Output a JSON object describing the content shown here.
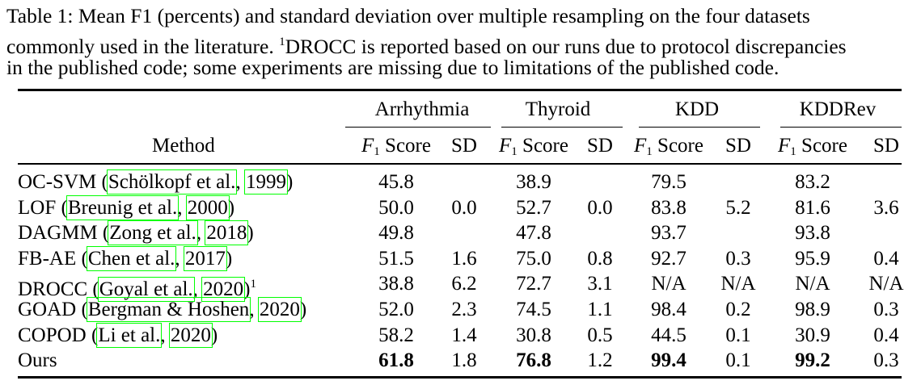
{
  "caption": {
    "lines": [
      "Table 1: Mean F1 (percents) and standard deviation over multiple resampling on the four datasets",
      "commonly used in the literature. ",
      "in the published code; some experiments are missing due to limitations of the published code."
    ],
    "footnote_mark": "1",
    "line2_rest": "DROCC is reported based on our runs due to protocol discrepancies"
  },
  "table": {
    "method_header": "Method",
    "groups": [
      "Arrhythmia",
      "Thyroid",
      "KDD",
      "KDDRev"
    ],
    "f1_symbol": "F",
    "f1_sub": "1",
    "f1_word": "Score",
    "sd_header": "SD",
    "rows": [
      {
        "method": "OC-SVM",
        "author": "Schölkopf et al.",
        "year": "1999",
        "sup": "",
        "values": [
          "45.8",
          "",
          "38.9",
          "",
          "79.5",
          "",
          "83.2",
          ""
        ],
        "bold": []
      },
      {
        "method": "LOF",
        "author": "Breunig et al.",
        "year": "2000",
        "sup": "",
        "values": [
          "50.0",
          "0.0",
          "52.7",
          "0.0",
          "83.8",
          "5.2",
          "81.6",
          "3.6"
        ],
        "bold": []
      },
      {
        "method": "DAGMM",
        "author": "Zong et al.",
        "year": "2018",
        "sup": "",
        "values": [
          "49.8",
          "",
          "47.8",
          "",
          "93.7",
          "",
          "93.8",
          ""
        ],
        "bold": []
      },
      {
        "method": "FB-AE",
        "author": "Chen et al.",
        "year": "2017",
        "sup": "",
        "values": [
          "51.5",
          "1.6",
          "75.0",
          "0.8",
          "92.7",
          "0.3",
          "95.9",
          "0.4"
        ],
        "bold": []
      },
      {
        "method": "DROCC",
        "author": "Goyal et al.",
        "year": "2020",
        "sup": "1",
        "values": [
          "38.8",
          "6.2",
          "72.7",
          "3.1",
          "N/A",
          "N/A",
          "N/A",
          "N/A"
        ],
        "bold": []
      },
      {
        "method": "GOAD",
        "author": "Bergman & Hoshen",
        "year": "2020",
        "sup": "",
        "values": [
          "52.0",
          "2.3",
          "74.5",
          "1.1",
          "98.4",
          "0.2",
          "98.9",
          "0.3"
        ],
        "bold": []
      },
      {
        "method": "COPOD",
        "author": "Li et al.",
        "year": "2020",
        "sup": "",
        "values": [
          "58.2",
          "1.4",
          "30.8",
          "0.5",
          "44.5",
          "0.1",
          "30.9",
          "0.4"
        ],
        "bold": []
      },
      {
        "method": "Ours",
        "author": "",
        "year": "",
        "sup": "",
        "values": [
          "61.8",
          "1.8",
          "76.8",
          "1.2",
          "99.4",
          "0.1",
          "99.2",
          "0.3"
        ],
        "bold": [
          0,
          2,
          4,
          6
        ]
      }
    ]
  },
  "colors": {
    "citation_box": "#00ff00"
  }
}
